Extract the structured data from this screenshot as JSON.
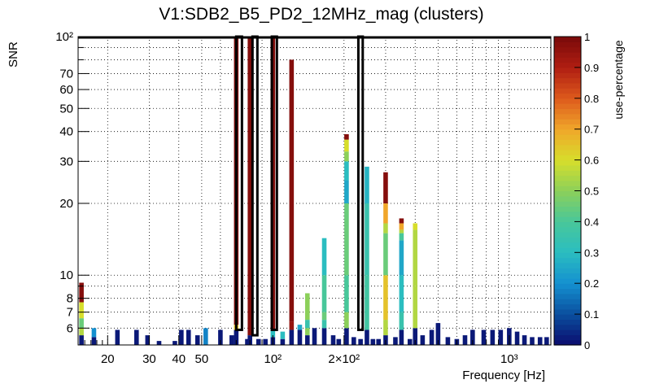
{
  "chart_data": {
    "type": "heatmap",
    "title": "V1:SDB2_B5_PD2_12MHz_mag (clusters)",
    "xlabel": "Frequency [Hz]",
    "ylabel": "SNR",
    "colorbar_label": "use-percentage",
    "x_scale": "log",
    "y_scale": "log",
    "xlim": [
      15,
      1500
    ],
    "ylim": [
      5.1,
      100
    ],
    "colorbar_range": [
      0,
      1
    ],
    "grid": true,
    "x_ticks": [
      {
        "value": 20,
        "label": "20"
      },
      {
        "value": 30,
        "label": "30"
      },
      {
        "value": 40,
        "label": "40"
      },
      {
        "value": 50,
        "label": "50"
      },
      {
        "value": 100,
        "label": "10²"
      },
      {
        "value": 200,
        "label": "2×10²"
      },
      {
        "value": 1000,
        "label": "10³"
      }
    ],
    "y_ticks": [
      {
        "value": 6,
        "label": "6"
      },
      {
        "value": 7,
        "label": "7"
      },
      {
        "value": 8,
        "label": "8"
      },
      {
        "value": 10,
        "label": "10"
      },
      {
        "value": 20,
        "label": "20"
      },
      {
        "value": 30,
        "label": "30"
      },
      {
        "value": 40,
        "label": "40"
      },
      {
        "value": 50,
        "label": "50"
      },
      {
        "value": 60,
        "label": "60"
      },
      {
        "value": 70,
        "label": "70"
      },
      {
        "value": 100,
        "label": "10²"
      }
    ],
    "colorbar_ticks": [
      {
        "value": 0,
        "label": "0"
      },
      {
        "value": 0.1,
        "label": "0.1"
      },
      {
        "value": 0.2,
        "label": "0.2"
      },
      {
        "value": 0.3,
        "label": "0.3"
      },
      {
        "value": 0.4,
        "label": "0.4"
      },
      {
        "value": 0.5,
        "label": "0.5"
      },
      {
        "value": 0.6,
        "label": "0.6"
      },
      {
        "value": 0.7,
        "label": "0.7"
      },
      {
        "value": 0.8,
        "label": "0.8"
      },
      {
        "value": 0.9,
        "label": "0.9"
      },
      {
        "value": 1,
        "label": "1"
      }
    ],
    "colorbar_colors": [
      "#0b0b6e",
      "#0a4f9e",
      "#1490d0",
      "#2bbdc0",
      "#48c79a",
      "#8cd05a",
      "#d7de2b",
      "#f0a62a",
      "#dd5a1c",
      "#b01e12",
      "#7a0a0a"
    ],
    "columns": [
      {
        "f": 15.5,
        "cells": [
          [
            5.1,
            5.6,
            0.02
          ],
          [
            5.6,
            6.0,
            0.55
          ],
          [
            6.0,
            6.6,
            0.45
          ],
          [
            6.6,
            7.7,
            0.6
          ],
          [
            7.7,
            9.3,
            0.98
          ]
        ]
      },
      {
        "f": 17.5,
        "cells": [
          [
            5.1,
            5.5,
            0.02
          ],
          [
            5.5,
            6.0,
            0.2
          ]
        ]
      },
      {
        "f": 22,
        "cells": [
          [
            5.1,
            5.9,
            0.02
          ]
        ]
      },
      {
        "f": 26.5,
        "cells": [
          [
            5.1,
            5.9,
            0.02
          ]
        ]
      },
      {
        "f": 29.5,
        "cells": [
          [
            5.1,
            5.6,
            0.02
          ]
        ]
      },
      {
        "f": 33,
        "cells": [
          [
            5.1,
            5.3,
            0.02
          ]
        ]
      },
      {
        "f": 38.5,
        "cells": [
          [
            5.1,
            5.3,
            0.02
          ]
        ]
      },
      {
        "f": 41,
        "cells": [
          [
            5.1,
            5.9,
            0.02
          ]
        ]
      },
      {
        "f": 44,
        "cells": [
          [
            5.1,
            5.9,
            0.02
          ]
        ]
      },
      {
        "f": 48,
        "cells": [
          [
            5.1,
            5.6,
            0.02
          ]
        ]
      },
      {
        "f": 52,
        "cells": [
          [
            5.1,
            6.0,
            0.18
          ]
        ]
      },
      {
        "f": 60,
        "cells": [
          [
            5.1,
            5.9,
            0.02
          ]
        ]
      },
      {
        "f": 67,
        "cells": [
          [
            5.1,
            5.6,
            0.02
          ]
        ]
      },
      {
        "f": 70,
        "cells": [
          [
            5.1,
            5.9,
            0.02
          ],
          [
            5.9,
            6.2,
            0.65
          ],
          [
            6.2,
            100,
            0.98
          ]
        ]
      },
      {
        "f": 78,
        "cells": [
          [
            5.1,
            5.4,
            0.02
          ]
        ]
      },
      {
        "f": 80,
        "cells": [
          [
            5.1,
            5.6,
            0.02
          ],
          [
            5.6,
            100,
            0.98
          ]
        ]
      },
      {
        "f": 87,
        "cells": [
          [
            5.1,
            5.4,
            0.02
          ]
        ]
      },
      {
        "f": 93,
        "cells": [
          [
            5.1,
            5.4,
            0.02
          ]
        ]
      },
      {
        "f": 100,
        "cells": [
          [
            5.1,
            5.5,
            0.02
          ],
          [
            5.5,
            5.9,
            0.3
          ],
          [
            5.9,
            100,
            0.98
          ]
        ]
      },
      {
        "f": 110,
        "cells": [
          [
            5.1,
            5.4,
            0.02
          ],
          [
            5.4,
            5.8,
            0.3
          ]
        ]
      },
      {
        "f": 120,
        "cells": [
          [
            5.1,
            5.9,
            0.02
          ],
          [
            5.9,
            6.4,
            0.95
          ],
          [
            6.4,
            80,
            0.98
          ]
        ]
      },
      {
        "f": 130,
        "cells": [
          [
            5.1,
            5.9,
            0.02
          ],
          [
            5.9,
            6.2,
            0.25
          ]
        ]
      },
      {
        "f": 140,
        "cells": [
          [
            5.1,
            5.6,
            0.02
          ],
          [
            5.6,
            6.0,
            0.5
          ],
          [
            6.0,
            6.5,
            0.35
          ],
          [
            6.5,
            8.4,
            0.5
          ]
        ]
      },
      {
        "f": 150,
        "cells": [
          [
            5.1,
            6.0,
            0.02
          ]
        ]
      },
      {
        "f": 165,
        "cells": [
          [
            5.1,
            6.0,
            0.02
          ],
          [
            6.0,
            6.5,
            0.35
          ],
          [
            6.5,
            7.0,
            0.45
          ],
          [
            7.0,
            10,
            0.4
          ],
          [
            10,
            14.3,
            0.3
          ]
        ]
      },
      {
        "f": 180,
        "cells": [
          [
            5.1,
            5.6,
            0.02
          ]
        ]
      },
      {
        "f": 190,
        "cells": [
          [
            5.1,
            5.4,
            0.02
          ]
        ]
      },
      {
        "f": 205,
        "cells": [
          [
            5.1,
            6.0,
            0.02
          ],
          [
            6.0,
            7.0,
            0.5
          ],
          [
            7.0,
            10,
            0.4
          ],
          [
            10,
            20,
            0.45
          ],
          [
            20,
            25,
            0.25
          ],
          [
            25,
            30,
            0.3
          ],
          [
            30,
            33,
            0.5
          ],
          [
            33,
            37,
            0.6
          ],
          [
            37,
            39,
            0.98
          ]
        ]
      },
      {
        "f": 220,
        "cells": [
          [
            5.1,
            5.5,
            0.02
          ]
        ]
      },
      {
        "f": 235,
        "cells": [
          [
            5.1,
            5.4,
            0.02
          ]
        ]
      },
      {
        "f": 250,
        "cells": [
          [
            5.1,
            5.9,
            0.02
          ],
          [
            5.9,
            10,
            0.38
          ],
          [
            10,
            20,
            0.35
          ],
          [
            20,
            28.5,
            0.28
          ]
        ]
      },
      {
        "f": 265,
        "cells": [
          [
            5.1,
            5.4,
            0.02
          ]
        ]
      },
      {
        "f": 280,
        "cells": [
          [
            5.1,
            5.4,
            0.02
          ]
        ]
      },
      {
        "f": 300,
        "cells": [
          [
            5.1,
            5.6,
            0.02
          ],
          [
            5.6,
            6.5,
            0.55
          ],
          [
            6.5,
            10,
            0.65
          ],
          [
            10,
            15,
            0.45
          ],
          [
            15,
            16.5,
            0.55
          ],
          [
            16.5,
            20,
            0.7
          ],
          [
            20,
            27,
            0.98
          ]
        ]
      },
      {
        "f": 330,
        "cells": [
          [
            5.1,
            5.5,
            0.02
          ]
        ]
      },
      {
        "f": 350,
        "cells": [
          [
            5.1,
            5.9,
            0.02
          ],
          [
            5.9,
            7.0,
            0.35
          ],
          [
            7.0,
            10,
            0.3
          ],
          [
            10,
            14,
            0.25
          ],
          [
            14,
            15,
            0.4
          ],
          [
            15,
            15.5,
            0.55
          ],
          [
            15.5,
            16.5,
            0.7
          ],
          [
            16.5,
            17.3,
            0.98
          ]
        ]
      },
      {
        "f": 380,
        "cells": [
          [
            5.1,
            5.4,
            0.02
          ]
        ]
      },
      {
        "f": 400,
        "cells": [
          [
            5.1,
            6.0,
            0.02
          ],
          [
            6.0,
            9.0,
            0.55
          ],
          [
            9.0,
            15.5,
            0.55
          ],
          [
            15.5,
            16.5,
            0.6
          ]
        ]
      },
      {
        "f": 430,
        "cells": [
          [
            5.1,
            5.6,
            0.02
          ]
        ]
      },
      {
        "f": 470,
        "cells": [
          [
            5.1,
            5.9,
            0.02
          ]
        ]
      },
      {
        "f": 500,
        "cells": [
          [
            5.1,
            6.3,
            0.02
          ]
        ]
      },
      {
        "f": 550,
        "cells": [
          [
            5.1,
            5.5,
            0.02
          ]
        ]
      },
      {
        "f": 600,
        "cells": [
          [
            5.1,
            5.4,
            0.02
          ]
        ]
      },
      {
        "f": 650,
        "cells": [
          [
            5.1,
            5.6,
            0.02
          ]
        ]
      },
      {
        "f": 700,
        "cells": [
          [
            5.1,
            5.9,
            0.02
          ]
        ]
      },
      {
        "f": 780,
        "cells": [
          [
            5.1,
            5.9,
            0.02
          ]
        ]
      },
      {
        "f": 850,
        "cells": [
          [
            5.1,
            5.9,
            0.02
          ]
        ]
      },
      {
        "f": 920,
        "cells": [
          [
            5.1,
            5.9,
            0.02
          ]
        ]
      },
      {
        "f": 1000,
        "cells": [
          [
            5.1,
            6.0,
            0.02
          ]
        ]
      },
      {
        "f": 1080,
        "cells": [
          [
            5.1,
            5.8,
            0.02
          ]
        ]
      },
      {
        "f": 1160,
        "cells": [
          [
            5.1,
            5.6,
            0.02
          ]
        ]
      },
      {
        "f": 1250,
        "cells": [
          [
            5.1,
            5.5,
            0.02
          ]
        ]
      },
      {
        "f": 1350,
        "cells": [
          [
            5.1,
            5.5,
            0.02
          ]
        ]
      },
      {
        "f": 1440,
        "cells": [
          [
            5.1,
            5.5,
            0.02
          ]
        ]
      }
    ],
    "selected_clusters": [
      {
        "f_range": [
          70,
          74
        ],
        "snr_range": [
          5.9,
          100
        ]
      },
      {
        "f_range": [
          82,
          86
        ],
        "snr_range": [
          5.6,
          100
        ]
      },
      {
        "f_range": [
          99,
          104
        ],
        "snr_range": [
          5.9,
          100
        ]
      },
      {
        "f_range": [
          230,
          240
        ],
        "snr_range": [
          5.9,
          100
        ]
      }
    ]
  }
}
